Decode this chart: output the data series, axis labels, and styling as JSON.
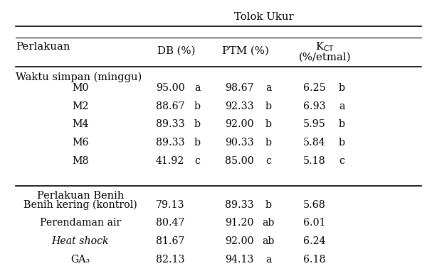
{
  "title_row": "Tolok Ukur",
  "section1_header": "Waktu simpan (minggu)",
  "section1_rows": [
    [
      "M0",
      "95.00",
      "a",
      "98.67",
      "a",
      "6.25",
      "b"
    ],
    [
      "M2",
      "88.67",
      "b",
      "92.33",
      "b",
      "6.93",
      "a"
    ],
    [
      "M4",
      "89.33",
      "b",
      "92.00",
      "b",
      "5.95",
      "b"
    ],
    [
      "M6",
      "89.33",
      "b",
      "90.33",
      "b",
      "5.84",
      "b"
    ],
    [
      "M8",
      "41.92",
      "c",
      "85.00",
      "c",
      "5.18",
      "c"
    ]
  ],
  "section2_header": "Perlakuan Benih",
  "section2_rows": [
    [
      "Benih kering (kontrol)",
      "79.13",
      "",
      "89.33",
      "b",
      "5.68",
      ""
    ],
    [
      "Perendaman air",
      "80.47",
      "",
      "91.20",
      "ab",
      "6.01",
      ""
    ],
    [
      "Heat shock",
      "81.67",
      "",
      "92.00",
      "ab",
      "6.24",
      ""
    ],
    [
      "GA₃",
      "82.13",
      "",
      "94.13",
      "a",
      "6.18",
      ""
    ]
  ],
  "bg_color": "white",
  "font_size": 10.5
}
